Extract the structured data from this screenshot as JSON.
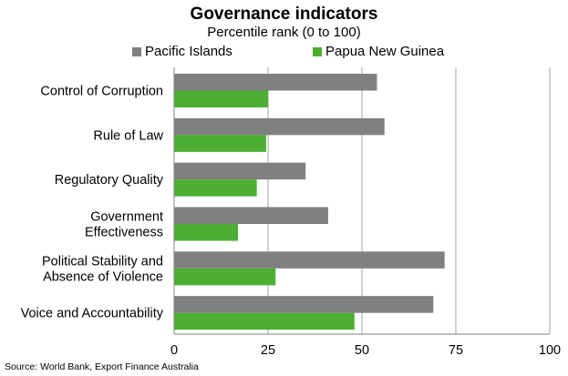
{
  "chart_data": {
    "type": "bar",
    "orientation": "horizontal",
    "title": "Governance indicators",
    "subtitle": "Percentile rank (0 to 100)",
    "categories": [
      [
        "Control of Corruption"
      ],
      [
        "Rule of Law"
      ],
      [
        "Regulatory Quality"
      ],
      [
        "Government",
        "Effectiveness"
      ],
      [
        "Political Stability and",
        "Absence of Violence"
      ],
      [
        "Voice and Accountability"
      ]
    ],
    "series": [
      {
        "name": "Pacific Islands",
        "color": "#808080",
        "values": [
          54,
          56,
          35,
          41,
          72,
          69
        ]
      },
      {
        "name": "Papua New Guinea",
        "color": "#4cae32",
        "values": [
          25,
          24.5,
          22,
          17,
          27,
          48
        ]
      }
    ],
    "xlim": [
      0,
      100
    ],
    "xticks": [
      0,
      25,
      50,
      75,
      100
    ],
    "grid": true,
    "legend_position": "top",
    "source": "Source: World Bank, Export Finance Australia"
  }
}
